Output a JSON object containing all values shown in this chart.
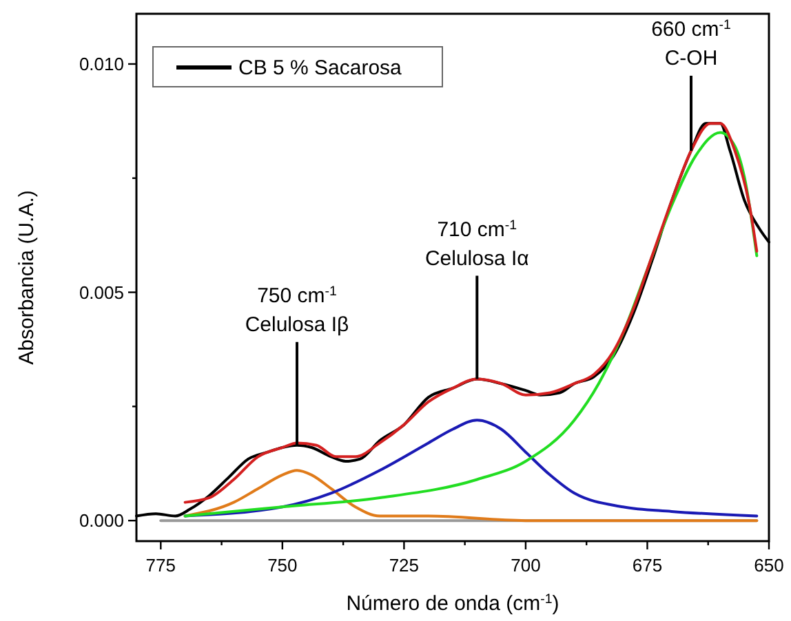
{
  "chart_data": {
    "type": "line",
    "xlabel": "Número de onda (cm$^{-1}$)",
    "ylabel": "Absorbancia (U.A.)",
    "xlim": [
      780,
      650
    ],
    "ylim": [
      -0.00045,
      0.0111
    ],
    "xticks": [
      775,
      {
        "value": 762.5,
        "label": null
      },
      750,
      {
        "value": 737.5,
        "label": null
      },
      725,
      {
        "value": 712.5,
        "label": null
      },
      700,
      {
        "value": 687.5,
        "label": null
      },
      675,
      {
        "value": 662.5,
        "label": null
      },
      650
    ],
    "yticks": [
      {
        "value": 0,
        "label": "0.000"
      },
      {
        "value": 0.0025,
        "label": null
      },
      {
        "value": 0.005,
        "label": "0.005"
      },
      {
        "value": 0.0075,
        "label": null
      },
      {
        "value": 0.01,
        "label": "0.010"
      }
    ],
    "grid": false,
    "legend": "top left",
    "line_style": "solid",
    "marker": "none",
    "series": [
      {
        "color": "#999999",
        "x": [
          775,
          652.5
        ],
        "values": [
          0,
          0
        ]
      },
      {
        "name": "CB 5 % Sacarosa",
        "color": "#000000",
        "x": [
          780,
          776,
          772,
          769,
          765,
          761,
          757,
          753,
          750,
          747,
          744,
          740,
          737,
          734,
          730,
          725,
          720,
          715,
          710,
          705,
          700,
          697,
          693,
          690,
          686,
          682,
          678,
          674,
          670,
          666,
          663,
          660,
          658,
          655,
          652,
          650
        ],
        "values": [
          0.0001,
          0.00015,
          0.0001,
          0.00025,
          0.00055,
          0.00095,
          0.00135,
          0.0015,
          0.0016,
          0.00165,
          0.0016,
          0.0014,
          0.0013,
          0.00135,
          0.00175,
          0.0021,
          0.0027,
          0.0029,
          0.0031,
          0.003,
          0.00285,
          0.00275,
          0.0028,
          0.003,
          0.00315,
          0.0036,
          0.0045,
          0.0057,
          0.007,
          0.0081,
          0.0087,
          0.0087,
          0.0081,
          0.007,
          0.0064,
          0.0061
        ]
      },
      {
        "color": "#e07b1a",
        "x": [
          770,
          760,
          755,
          750,
          747,
          744,
          740,
          735,
          730,
          720,
          700,
          652.5
        ],
        "values": [
          0.0001,
          0.0004,
          0.0007,
          0.001,
          0.0011,
          0.001,
          0.0007,
          0.0003,
          0.0001,
          0.0001,
          0,
          0
        ]
      },
      {
        "color": "#1a1ab4",
        "x": [
          770,
          750,
          740,
          730,
          720,
          715,
          710,
          705,
          700,
          695,
          690,
          680,
          670,
          652.5
        ],
        "values": [
          0.0001,
          0.0003,
          0.0006,
          0.0011,
          0.0017,
          0.002,
          0.0022,
          0.002,
          0.0015,
          0.001,
          0.0006,
          0.0003,
          0.0002,
          0.0001
        ]
      },
      {
        "color": "#22dd22",
        "x": [
          770,
          750,
          730,
          710,
          700,
          690,
          685,
          680,
          675,
          670,
          665,
          660,
          657,
          655,
          652.5
        ],
        "values": [
          0.0001,
          0.0003,
          0.0005,
          0.0009,
          0.0013,
          0.0022,
          0.003,
          0.0041,
          0.0055,
          0.0069,
          0.008,
          0.0085,
          0.0082,
          0.0075,
          0.0058
        ]
      },
      {
        "color": "#d42020",
        "x": [
          770,
          765,
          760,
          755,
          750,
          747,
          743,
          739,
          735,
          730,
          725,
          720,
          715,
          710,
          705,
          700,
          695,
          690,
          686,
          682,
          678,
          674,
          670,
          666,
          662,
          660,
          657,
          654,
          652.5
        ],
        "values": [
          0.0004,
          0.0005,
          0.0009,
          0.0014,
          0.0016,
          0.0017,
          0.00165,
          0.0014,
          0.0014,
          0.0017,
          0.0021,
          0.0026,
          0.0029,
          0.0031,
          0.003,
          0.00275,
          0.0028,
          0.003,
          0.0032,
          0.0037,
          0.0046,
          0.0058,
          0.007,
          0.0081,
          0.0087,
          0.0087,
          0.0081,
          0.0069,
          0.0059
        ]
      }
    ],
    "annotations": [
      {
        "text": "750 cm$^{-1}$\nCelulosa Iβ",
        "x": 747,
        "y": 0.00165
      },
      {
        "text": "710 cm$^{-1}$\nCelulosa Iα",
        "x": 710,
        "y": 0.0031
      },
      {
        "text": "660 cm$^{-1}$\nC-OH",
        "x": 666,
        "y": 0.0081
      }
    ]
  }
}
